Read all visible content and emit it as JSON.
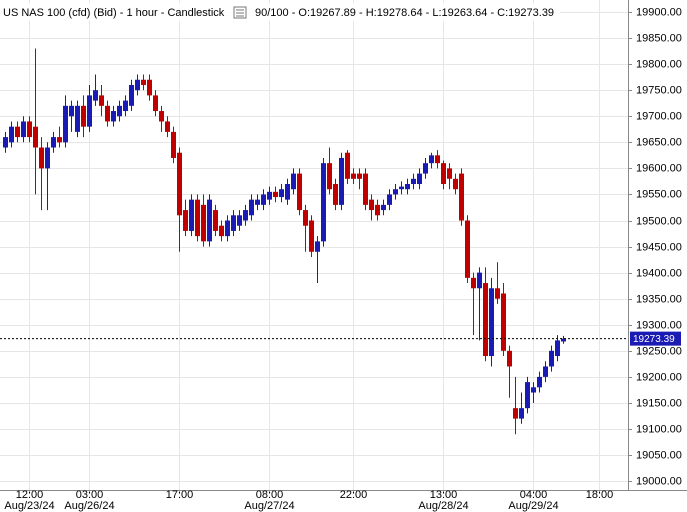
{
  "chart_data": {
    "type": "candlestick",
    "title": "US NAS 100 (cfd) (Bid) - 1 hour - Candlestick",
    "bar_info": "90/100 - O:19267.89 - H:19278.64 - L:19263.64 - C:19273.39",
    "up_color": "#1a1ab4",
    "down_color": "#c00000",
    "grid": true,
    "last_price": 19273.39,
    "categories": [
      null,
      null,
      null,
      null,
      "12:00",
      null,
      null,
      null,
      null,
      null,
      null,
      null,
      null,
      null,
      "03:00",
      null,
      null,
      null,
      null,
      null,
      null,
      null,
      null,
      null,
      null,
      null,
      null,
      null,
      null,
      "17:00",
      null,
      null,
      null,
      null,
      null,
      null,
      null,
      null,
      null,
      null,
      null,
      null,
      null,
      null,
      "08:00",
      null,
      null,
      null,
      null,
      null,
      null,
      null,
      null,
      null,
      null,
      null,
      null,
      null,
      "22:00",
      null,
      null,
      null,
      null,
      null,
      null,
      null,
      null,
      null,
      null,
      null,
      null,
      null,
      null,
      "13:00",
      null,
      null,
      null,
      null,
      null,
      null,
      null,
      null,
      null,
      null,
      null,
      null,
      null,
      null,
      "04:00",
      null,
      null,
      null,
      null,
      null,
      null,
      null,
      null,
      null,
      null,
      "18:00",
      null,
      null,
      null,
      null
    ],
    "category_dates": [
      null,
      null,
      null,
      null,
      "Aug/23/24",
      null,
      null,
      null,
      null,
      null,
      null,
      null,
      null,
      null,
      "Aug/26/24",
      null,
      null,
      null,
      null,
      null,
      null,
      null,
      null,
      null,
      null,
      null,
      null,
      null,
      null,
      null,
      null,
      null,
      null,
      null,
      null,
      null,
      null,
      null,
      null,
      null,
      null,
      null,
      null,
      null,
      "Aug/27/24",
      null,
      null,
      null,
      null,
      null,
      null,
      null,
      null,
      null,
      null,
      null,
      null,
      null,
      null,
      null,
      null,
      null,
      null,
      null,
      null,
      null,
      null,
      null,
      null,
      null,
      null,
      null,
      null,
      "Aug/28/24",
      null,
      null,
      null,
      null,
      null,
      null,
      null,
      null,
      null,
      null,
      null,
      null,
      null,
      null,
      "Aug/29/24",
      null,
      null,
      null,
      null,
      null,
      null,
      null,
      null,
      null,
      null,
      null,
      null,
      null,
      null,
      null
    ],
    "open": [
      19640,
      19650,
      19680,
      19660,
      19690,
      19680,
      19640,
      19600,
      19640,
      19660,
      19650,
      19700,
      19670,
      19720,
      19680,
      19730,
      19740,
      19720,
      19690,
      19700,
      19710,
      19720,
      19750,
      19770,
      19770,
      19740,
      19710,
      19690,
      19670,
      19630,
      19520,
      19480,
      19540,
      19530,
      19460,
      19520,
      19490,
      19470,
      19480,
      19490,
      19500,
      19510,
      19530,
      19530,
      19540,
      19555,
      19545,
      19540,
      19560,
      19590,
      19520,
      19500,
      19440,
      19460,
      19610,
      19570,
      19530,
      19630,
      19590,
      19590,
      19590,
      19540,
      19530,
      19520,
      19530,
      19550,
      19560,
      19560,
      19570,
      19570,
      19590,
      19610,
      19625,
      19610,
      19600,
      19580,
      19590,
      19500,
      19390,
      19370,
      19380,
      19240,
      19370,
      19360,
      19250,
      19140,
      19120,
      19140,
      19170,
      19180,
      19200,
      19220,
      19240,
      19267.89,
      null,
      null,
      null,
      null,
      null,
      null,
      null,
      null,
      null,
      null
    ],
    "high": [
      19670,
      19690,
      19690,
      19700,
      19700,
      19830,
      19660,
      19650,
      19670,
      19680,
      19740,
      19730,
      19730,
      19740,
      19760,
      19780,
      19760,
      19730,
      19720,
      19730,
      19740,
      19770,
      19780,
      19780,
      19780,
      19750,
      19720,
      19700,
      19680,
      19640,
      19540,
      19550,
      19550,
      19550,
      19550,
      19530,
      19500,
      19510,
      19520,
      19520,
      19530,
      19550,
      19550,
      19560,
      19565,
      19565,
      19570,
      19580,
      19600,
      19600,
      19530,
      19510,
      19470,
      19620,
      19640,
      19580,
      19630,
      19635,
      19600,
      19600,
      19600,
      19550,
      19540,
      19540,
      19560,
      19570,
      19575,
      19580,
      19590,
      19600,
      19620,
      19630,
      19635,
      19615,
      19610,
      19590,
      19600,
      19510,
      19400,
      19410,
      19410,
      19390,
      19420,
      19380,
      19260,
      19200,
      19170,
      19200,
      19190,
      19210,
      19230,
      19260,
      19280,
      19278.64,
      null,
      null,
      null,
      null,
      null,
      null,
      null,
      null,
      null,
      null
    ],
    "low": [
      19630,
      19640,
      19650,
      19650,
      19650,
      19550,
      19520,
      19520,
      19630,
      19640,
      19640,
      19670,
      19660,
      19660,
      19670,
      19720,
      19700,
      19680,
      19680,
      19690,
      19700,
      19710,
      19740,
      19750,
      19730,
      19700,
      19670,
      19660,
      19610,
      19440,
      19470,
      19470,
      19460,
      19450,
      19450,
      19470,
      19460,
      19460,
      19470,
      19480,
      19490,
      19500,
      19520,
      19520,
      19530,
      19535,
      19535,
      19530,
      19550,
      19510,
      19440,
      19430,
      19380,
      19450,
      19550,
      19520,
      19520,
      19570,
      19570,
      19560,
      19520,
      19500,
      19500,
      19510,
      19520,
      19540,
      19550,
      19550,
      19560,
      19560,
      19580,
      19600,
      19600,
      19560,
      19560,
      19550,
      19490,
      19380,
      19280,
      19270,
      19230,
      19220,
      19340,
      19240,
      19160,
      19090,
      19110,
      19130,
      19150,
      19170,
      19190,
      19210,
      19230,
      19263.64,
      null,
      null,
      null,
      null,
      null,
      null,
      null,
      null,
      null,
      null
    ],
    "close": [
      19660,
      19680,
      19660,
      19690,
      19660,
      19640,
      19600,
      19640,
      19660,
      19650,
      19720,
      19720,
      19720,
      19680,
      19740,
      19750,
      19720,
      19690,
      19710,
      19720,
      19730,
      19760,
      19770,
      19760,
      19740,
      19710,
      19690,
      19670,
      19620,
      19510,
      19480,
      19540,
      19470,
      19460,
      19540,
      19480,
      19470,
      19500,
      19510,
      19510,
      19520,
      19540,
      19540,
      19550,
      19555,
      19545,
      19560,
      19570,
      19590,
      19520,
      19490,
      19440,
      19460,
      19610,
      19560,
      19530,
      19620,
      19580,
      19580,
      19580,
      19530,
      19520,
      19510,
      19530,
      19550,
      19560,
      19565,
      19570,
      19580,
      19590,
      19610,
      19625,
      19610,
      19570,
      19580,
      19560,
      19500,
      19390,
      19370,
      19400,
      19240,
      19370,
      19350,
      19250,
      19220,
      19120,
      19140,
      19190,
      19180,
      19200,
      19220,
      19250,
      19270,
      19273.39,
      null,
      null,
      null,
      null,
      null,
      null,
      null,
      null,
      null,
      null
    ],
    "ylim": [
      18983,
      19923
    ],
    "yticks": [
      {
        "value": 19900,
        "label": "19900.00"
      },
      {
        "value": 19850,
        "label": "19850.00"
      },
      {
        "value": 19800,
        "label": "19800.00"
      },
      {
        "value": 19750,
        "label": "19750.00"
      },
      {
        "value": 19700,
        "label": "19700.00"
      },
      {
        "value": 19650,
        "label": "19650.00"
      },
      {
        "value": 19600,
        "label": "19600.00"
      },
      {
        "value": 19550,
        "label": "19550.00"
      },
      {
        "value": 19500,
        "label": "19500.00"
      },
      {
        "value": 19450,
        "label": "19450.00"
      },
      {
        "value": 19400,
        "label": "19400.00"
      },
      {
        "value": 19350,
        "label": "19350.00"
      },
      {
        "value": 19300,
        "label": "19300.00"
      },
      {
        "value": 19250,
        "label": "19250.00"
      },
      {
        "value": 19200,
        "label": "19200.00"
      },
      {
        "value": 19150,
        "label": "19150.00"
      },
      {
        "value": 19100,
        "label": "19100.00"
      },
      {
        "value": 19050,
        "label": "19050.00"
      },
      {
        "value": 19000,
        "label": "19000.00"
      }
    ]
  }
}
